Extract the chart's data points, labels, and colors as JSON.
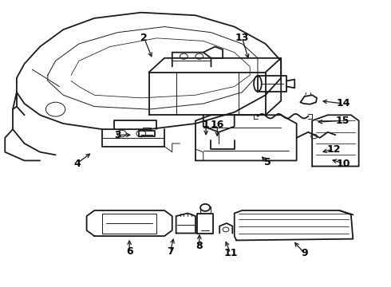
{
  "bg_color": "#ffffff",
  "line_color": "#1a1a1a",
  "label_color": "#000000",
  "figsize": [
    4.9,
    3.6
  ],
  "dpi": 100,
  "lw_main": 1.3,
  "lw_thin": 0.7,
  "label_fontsize": 9,
  "callouts": {
    "1": {
      "text": [
        0.527,
        0.565
      ],
      "arrow": [
        0.527,
        0.52
      ]
    },
    "2": {
      "text": [
        0.368,
        0.87
      ],
      "arrow": [
        0.39,
        0.795
      ]
    },
    "3": {
      "text": [
        0.3,
        0.53
      ],
      "arrow": [
        0.34,
        0.53
      ]
    },
    "4": {
      "text": [
        0.195,
        0.43
      ],
      "arrow": [
        0.235,
        0.47
      ]
    },
    "5": {
      "text": [
        0.685,
        0.435
      ],
      "arrow": [
        0.665,
        0.46
      ]
    },
    "6": {
      "text": [
        0.33,
        0.12
      ],
      "arrow": [
        0.33,
        0.17
      ]
    },
    "7": {
      "text": [
        0.435,
        0.12
      ],
      "arrow": [
        0.445,
        0.175
      ]
    },
    "8": {
      "text": [
        0.51,
        0.14
      ],
      "arrow": [
        0.51,
        0.19
      ]
    },
    "9": {
      "text": [
        0.78,
        0.115
      ],
      "arrow": [
        0.75,
        0.16
      ]
    },
    "10": {
      "text": [
        0.88,
        0.43
      ],
      "arrow": [
        0.845,
        0.445
      ]
    },
    "11": {
      "text": [
        0.59,
        0.115
      ],
      "arrow": [
        0.575,
        0.165
      ]
    },
    "12": {
      "text": [
        0.855,
        0.48
      ],
      "arrow": [
        0.82,
        0.468
      ]
    },
    "13": {
      "text": [
        0.62,
        0.87
      ],
      "arrow": [
        0.638,
        0.79
      ]
    },
    "14": {
      "text": [
        0.88,
        0.64
      ],
      "arrow": [
        0.82,
        0.65
      ]
    },
    "15": {
      "text": [
        0.878,
        0.58
      ],
      "arrow": [
        0.808,
        0.575
      ]
    },
    "16": {
      "text": [
        0.556,
        0.565
      ],
      "arrow": [
        0.556,
        0.515
      ]
    }
  }
}
